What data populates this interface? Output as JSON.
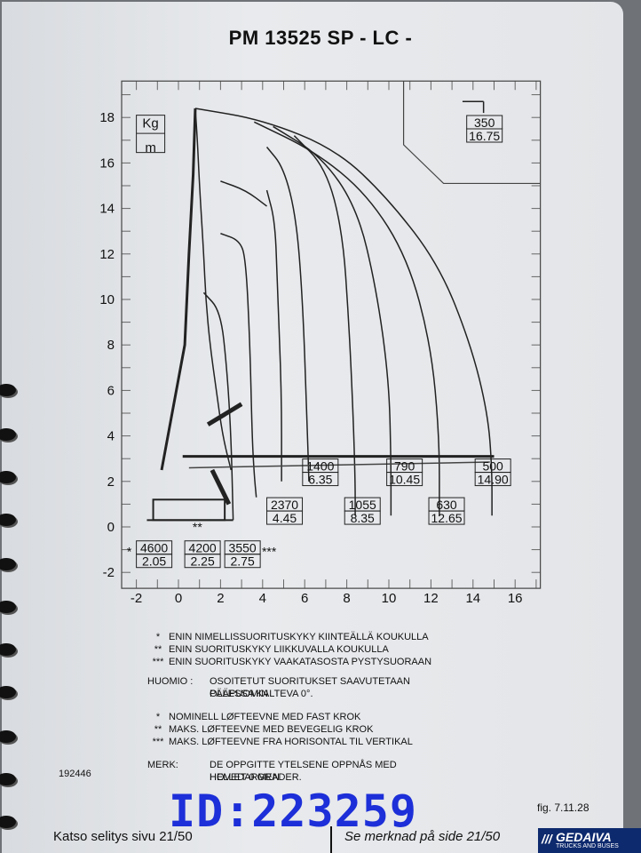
{
  "title": "PM 13525 SP - LC -",
  "chart_data": {
    "type": "line",
    "xlim": [
      -2,
      16
    ],
    "ylim": [
      -2,
      19
    ],
    "x_ticks": [
      "-2",
      "0",
      "2",
      "4",
      "6",
      "8",
      "10",
      "12",
      "14",
      "16"
    ],
    "y_ticks": [
      "18",
      "16",
      "14",
      "12",
      "10",
      "8",
      "6",
      "4",
      "2",
      "0",
      "-2"
    ],
    "units": [
      "Kg",
      "m"
    ],
    "series": [
      {
        "load": "4600",
        "reach": "2.05",
        "marker": "*"
      },
      {
        "load": "4200",
        "reach": "2.25",
        "marker": "**"
      },
      {
        "load": "3550",
        "reach": "2.75",
        "marker": "***"
      },
      {
        "load": "2370",
        "reach": "4.45"
      },
      {
        "load": "1400",
        "reach": "6.35"
      },
      {
        "load": "1055",
        "reach": "8.35"
      },
      {
        "load": "790",
        "reach": "10.45"
      },
      {
        "load": "630",
        "reach": "12.65"
      },
      {
        "load": "500",
        "reach": "14.90"
      }
    ],
    "inset": {
      "load": "350",
      "reach": "16.75"
    },
    "grid": true
  },
  "notes_fi": {
    "lines": [
      {
        "marker": "*",
        "text": "ENIN NIMELLISSUORITUSKYKY KIINTEÄLLÄ KOUKULLA"
      },
      {
        "marker": "**",
        "text": "ENIN SUORITUSKYKY LIIKKUVALLA KOUKULLA"
      },
      {
        "marker": "***",
        "text": "ENIN SUORITUSKYKY VAAKATASOSTA PYSTYSUORAAN"
      }
    ],
    "remark_label": "HUOMIO :",
    "remark_text_1": "OSOITETUT SUORITUKSET SAAVUTETAAN PÄÄPUOMIN",
    "remark_text_2": "OLLESSA KALTEVA 0°."
  },
  "notes_no": {
    "lines": [
      {
        "marker": "*",
        "text": "NOMINELL LØFTEEVNE MED FAST KROK"
      },
      {
        "marker": "**",
        "text": "MAKS. LØFTEEVNE MED BEVEGELIG KROK"
      },
      {
        "marker": "***",
        "text": "MAKS. LØFTEEVNE FRA HORISONTAL TIL VERTIKAL"
      }
    ],
    "remark_label": "MERK:",
    "remark_text_1": "DE OPPGITTE YTELSENE OPPNÅS MED HOVEDARMEN",
    "remark_text_2": "HELLET 0 GRADER."
  },
  "doc_number": "192446",
  "fig_label": "fig. 7.11.28",
  "watermark": "ID:223259",
  "footer_left": "Katso selitys sivu 21/50",
  "footer_right": "Se merknad på side 21/50",
  "brand": {
    "name": "GEDAIVA",
    "sub": "TRUCKS AND BUSES"
  }
}
